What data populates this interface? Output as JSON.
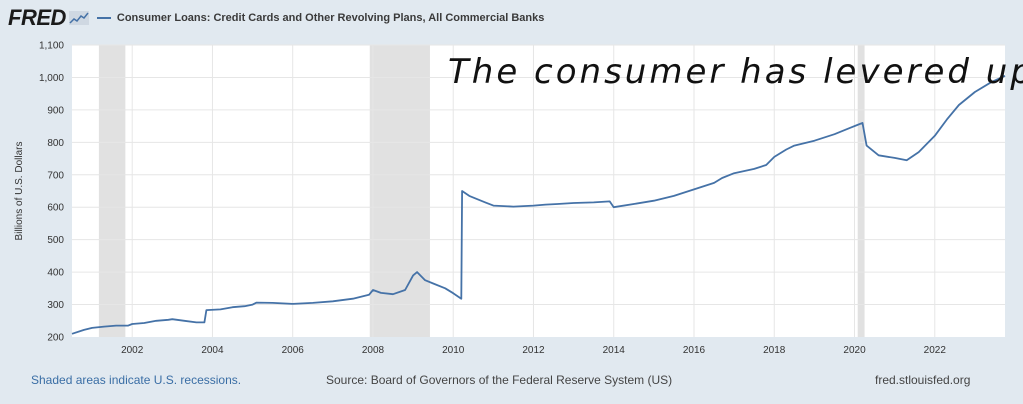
{
  "header": {
    "logo": "FRED",
    "series_label": "Consumer Loans: Credit Cards and Other Revolving Plans, All Commercial Banks"
  },
  "footer": {
    "recession_note": "Shaded areas indicate U.S. recessions.",
    "source": "Source: Board of Governors of the Federal Reserve System (US)",
    "site": "fred.stlouisfed.org"
  },
  "colors": {
    "line": "#4572a7",
    "recession": "#e1e1e1",
    "grid": "#e6e6e6",
    "background": "#e1e9f0"
  },
  "chart_data": {
    "type": "line",
    "ylabel": "Billions of U.S. Dollars",
    "ylim": [
      200,
      1100
    ],
    "xlim": [
      2000.5,
      2023.75
    ],
    "yticks": [
      "200",
      "300",
      "400",
      "500",
      "600",
      "700",
      "800",
      "900",
      "1,000",
      "1,100"
    ],
    "xticks": [
      "2002",
      "2004",
      "2006",
      "2008",
      "2010",
      "2012",
      "2014",
      "2016",
      "2018",
      "2020",
      "2022"
    ],
    "grid": true,
    "recessions": [
      [
        2001.17,
        2001.83
      ],
      [
        2007.92,
        2009.42
      ],
      [
        2020.08,
        2020.25
      ]
    ],
    "annotation": "The consumer has levered up.",
    "series": [
      {
        "name": "Consumer Loans: Credit Cards and Other Revolving Plans, All Commercial Banks",
        "x": [
          2000.5,
          2000.8,
          2001.0,
          2001.3,
          2001.6,
          2001.9,
          2002.0,
          2002.3,
          2002.6,
          2002.9,
          2003.0,
          2003.3,
          2003.6,
          2003.8,
          2003.85,
          2004.2,
          2004.5,
          2004.8,
          2005.0,
          2005.1,
          2005.5,
          2006.0,
          2006.5,
          2007.0,
          2007.5,
          2007.9,
          2008.0,
          2008.2,
          2008.5,
          2008.8,
          2009.0,
          2009.1,
          2009.3,
          2009.5,
          2009.8,
          2010.0,
          2010.2,
          2010.22,
          2010.4,
          2010.8,
          2011.0,
          2011.5,
          2012.0,
          2012.3,
          2012.6,
          2013.0,
          2013.5,
          2013.9,
          2014.0,
          2014.5,
          2015.0,
          2015.5,
          2016.0,
          2016.5,
          2016.7,
          2017.0,
          2017.5,
          2017.8,
          2018.0,
          2018.3,
          2018.5,
          2019.0,
          2019.5,
          2019.9,
          2020.1,
          2020.2,
          2020.3,
          2020.6,
          2021.0,
          2021.3,
          2021.6,
          2022.0,
          2022.3,
          2022.6,
          2023.0,
          2023.4,
          2023.75
        ],
        "values": [
          210,
          222,
          228,
          232,
          235,
          235,
          240,
          243,
          250,
          253,
          255,
          250,
          245,
          245,
          283,
          285,
          292,
          295,
          300,
          306,
          305,
          302,
          305,
          310,
          318,
          330,
          345,
          336,
          332,
          345,
          390,
          400,
          375,
          365,
          350,
          335,
          318,
          650,
          635,
          615,
          605,
          602,
          605,
          608,
          610,
          613,
          615,
          618,
          600,
          610,
          620,
          635,
          655,
          675,
          690,
          705,
          718,
          730,
          755,
          778,
          790,
          805,
          825,
          845,
          855,
          860,
          790,
          760,
          752,
          745,
          770,
          820,
          870,
          915,
          955,
          985,
          1005
        ]
      }
    ]
  }
}
